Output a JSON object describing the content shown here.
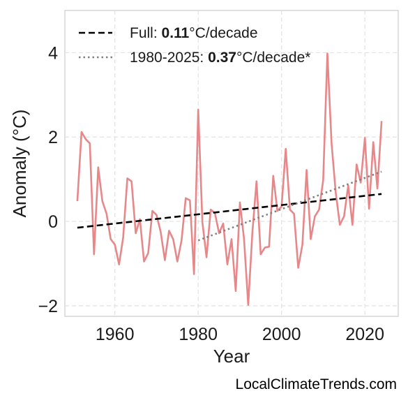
{
  "chart_data": {
    "type": "line",
    "xlabel": "Year",
    "ylabel": "Anomaly (°C)",
    "xlim": [
      1948,
      2028
    ],
    "ylim": [
      -2.25,
      5.0
    ],
    "xticks": [
      1960,
      1980,
      2000,
      2020
    ],
    "yticks": [
      -2,
      0,
      2,
      4
    ],
    "yticklabels": [
      "−2",
      "0",
      "2",
      "4"
    ],
    "grid": true,
    "legend_position": "top-left",
    "series": [
      {
        "color": "#e8878a",
        "x": [
          1951,
          1952,
          1953,
          1954,
          1955,
          1956,
          1957,
          1958,
          1959,
          1960,
          1961,
          1962,
          1963,
          1964,
          1965,
          1966,
          1967,
          1968,
          1969,
          1970,
          1971,
          1972,
          1973,
          1974,
          1975,
          1976,
          1977,
          1978,
          1979,
          1980,
          1981,
          1982,
          1983,
          1984,
          1985,
          1986,
          1987,
          1988,
          1989,
          1990,
          1991,
          1992,
          1993,
          1994,
          1995,
          1996,
          1997,
          1998,
          1999,
          2000,
          2001,
          2002,
          2003,
          2004,
          2005,
          2006,
          2007,
          2008,
          2009,
          2010,
          2011,
          2012,
          2013,
          2014,
          2015,
          2016,
          2017,
          2018,
          2019,
          2020,
          2021,
          2022,
          2023,
          2024
        ],
        "values": [
          0.48,
          2.12,
          1.95,
          1.85,
          -0.78,
          1.28,
          0.48,
          0.18,
          -0.42,
          -0.55,
          -1.02,
          -0.38,
          1.02,
          0.95,
          -0.28,
          0.05,
          -0.95,
          -0.75,
          0.25,
          0.15,
          -0.25,
          -0.92,
          -0.22,
          -0.42,
          -0.95,
          -0.45,
          0.55,
          0.5,
          -1.25,
          2.65,
          -0.02,
          -0.85,
          0.28,
          0.2,
          -0.28,
          -0.05,
          -1.02,
          -0.42,
          -1.65,
          0.45,
          -0.42,
          -1.98,
          -0.25,
          0.95,
          -0.78,
          -0.62,
          -0.6,
          1.08,
          0.25,
          0.35,
          1.72,
          0.28,
          0.18,
          -1.1,
          -0.55,
          1.22,
          -0.42,
          0.12,
          0.28,
          0.98,
          3.98,
          1.85,
          0.68,
          -0.08,
          0.12,
          0.85,
          -0.08,
          1.35,
          0.92,
          1.98,
          0.3,
          1.88,
          0.78,
          2.38
        ]
      },
      {
        "name": "Full",
        "style": "dashed",
        "color": "#000000",
        "x": [
          1951,
          2024
        ],
        "values": [
          -0.15,
          0.65
        ]
      },
      {
        "name": "1980-2025",
        "style": "dotted",
        "color": "#808080",
        "x": [
          1980,
          2024
        ],
        "values": [
          -0.45,
          1.18
        ]
      }
    ]
  },
  "legend": {
    "full": {
      "prefix": "Full: ",
      "value": "0.11",
      "suffix": "°C/decade"
    },
    "recent": {
      "prefix": "1980-2025: ",
      "value": "0.37",
      "suffix": "°C/decade*"
    }
  },
  "credit": "LocalClimateTrends.com"
}
